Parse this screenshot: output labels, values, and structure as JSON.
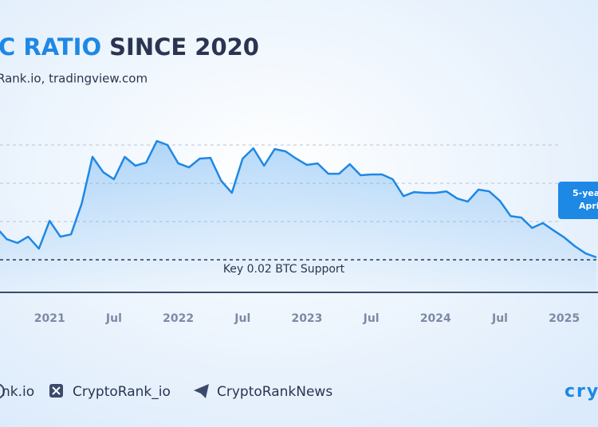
{
  "chart_data": {
    "type": "line",
    "title_accent": "C RATIO",
    "title": "SINCE 2020",
    "subtitle": "Rank.io, tradingview.com",
    "x": [
      "2020-08",
      "2020-09",
      "2020-10",
      "2020-11",
      "2020-12",
      "2021-01",
      "2021-02",
      "2021-03",
      "2021-04",
      "2021-05",
      "2021-06",
      "2021-07",
      "2021-08",
      "2021-09",
      "2021-10",
      "2021-11",
      "2021-12",
      "2022-01",
      "2022-02",
      "2022-03",
      "2022-04",
      "2022-05",
      "2022-06",
      "2022-07",
      "2022-08",
      "2022-09",
      "2022-10",
      "2022-11",
      "2022-12",
      "2023-01",
      "2023-02",
      "2023-03",
      "2023-04",
      "2023-05",
      "2023-06",
      "2023-07",
      "2023-08",
      "2023-09",
      "2023-10",
      "2023-11",
      "2023-12",
      "2024-01",
      "2024-02",
      "2024-03",
      "2024-04",
      "2024-05",
      "2024-06",
      "2024-07",
      "2024-08",
      "2024-09",
      "2024-10",
      "2024-11",
      "2024-12",
      "2025-01",
      "2025-02",
      "2025-03",
      "2025-04"
    ],
    "values": [
      0.0371,
      0.0308,
      0.0288,
      0.0321,
      0.0258,
      0.0404,
      0.0321,
      0.0333,
      0.0496,
      0.0738,
      0.0658,
      0.0621,
      0.0738,
      0.0692,
      0.0708,
      0.0821,
      0.08,
      0.0704,
      0.0683,
      0.0729,
      0.0733,
      0.0613,
      0.055,
      0.0729,
      0.0783,
      0.0692,
      0.0779,
      0.0767,
      0.0729,
      0.0696,
      0.0704,
      0.065,
      0.065,
      0.07,
      0.0642,
      0.0646,
      0.0646,
      0.0621,
      0.0533,
      0.0554,
      0.055,
      0.055,
      0.0558,
      0.0521,
      0.0504,
      0.0567,
      0.0558,
      0.0508,
      0.0429,
      0.0421,
      0.0367,
      0.0392,
      0.0354,
      0.0317,
      0.0271,
      0.0233,
      0.0213
    ],
    "color": "#1e88e5",
    "xlim": [
      "2020-08",
      "2025-04"
    ],
    "xticks": [
      {
        "value": "2021-01",
        "label": "2021"
      },
      {
        "value": "2021-07",
        "label": "Jul"
      },
      {
        "value": "2022-01",
        "label": "2022"
      },
      {
        "value": "2022-07",
        "label": "Jul"
      },
      {
        "value": "2023-01",
        "label": "2023"
      },
      {
        "value": "2023-07",
        "label": "Jul"
      },
      {
        "value": "2024-01",
        "label": "2024"
      },
      {
        "value": "2024-07",
        "label": "Jul"
      },
      {
        "value": "2025-01",
        "label": "2025"
      }
    ],
    "ylim": [
      0.003,
      0.1
    ],
    "yticks": [
      0.04,
      0.06,
      0.08
    ],
    "grid": true,
    "support": {
      "value": 0.02,
      "label": "Key 0.02 BTC Support"
    },
    "callout": [
      "5-yea",
      "Apri"
    ]
  },
  "footer": {
    "links": [
      "nk.io",
      "CryptoRank_io",
      "CryptoRankNews"
    ],
    "logo": "cryp"
  }
}
